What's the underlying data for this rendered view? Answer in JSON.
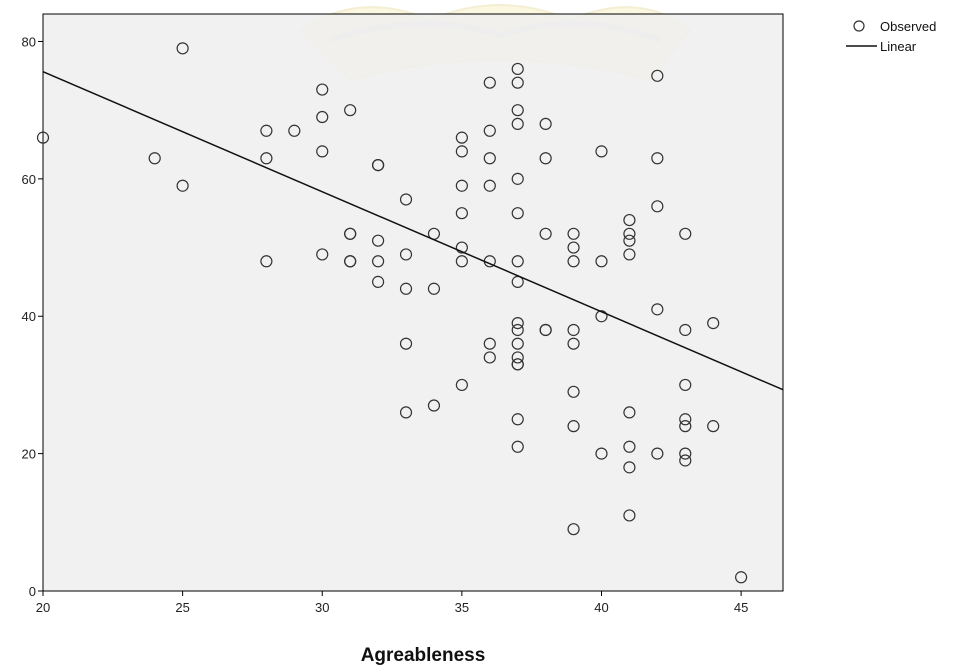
{
  "chart_data": {
    "type": "scatter",
    "title": "",
    "xlabel": "Agreableness",
    "ylabel": "",
    "xlim": [
      20,
      46.5
    ],
    "ylim": [
      0,
      84
    ],
    "x_ticks": [
      20,
      25,
      30,
      35,
      40,
      45
    ],
    "y_ticks": [
      0,
      20,
      40,
      60,
      80
    ],
    "grid": false,
    "legend_position": "top-right",
    "series": [
      {
        "name": "Observed",
        "marker": "open-circle",
        "color": "#333333",
        "points": [
          [
            20,
            66
          ],
          [
            24,
            63
          ],
          [
            25,
            79
          ],
          [
            25,
            59
          ],
          [
            28,
            67
          ],
          [
            28,
            63
          ],
          [
            28,
            48
          ],
          [
            29,
            67
          ],
          [
            30,
            73
          ],
          [
            30,
            69
          ],
          [
            30,
            64
          ],
          [
            30,
            49
          ],
          [
            31,
            70
          ],
          [
            31,
            52
          ],
          [
            31,
            52
          ],
          [
            31,
            48
          ],
          [
            31,
            48
          ],
          [
            32,
            62
          ],
          [
            32,
            62
          ],
          [
            32,
            51
          ],
          [
            32,
            48
          ],
          [
            32,
            45
          ],
          [
            33,
            57
          ],
          [
            33,
            49
          ],
          [
            33,
            44
          ],
          [
            33,
            36
          ],
          [
            33,
            26
          ],
          [
            34,
            52
          ],
          [
            34,
            44
          ],
          [
            34,
            27
          ],
          [
            35,
            66
          ],
          [
            35,
            64
          ],
          [
            35,
            59
          ],
          [
            35,
            55
          ],
          [
            35,
            50
          ],
          [
            35,
            48
          ],
          [
            35,
            30
          ],
          [
            36,
            74
          ],
          [
            36,
            67
          ],
          [
            36,
            63
          ],
          [
            36,
            59
          ],
          [
            36,
            48
          ],
          [
            36,
            36
          ],
          [
            36,
            34
          ],
          [
            37,
            76
          ],
          [
            37,
            74
          ],
          [
            37,
            70
          ],
          [
            37,
            68
          ],
          [
            37,
            60
          ],
          [
            37,
            55
          ],
          [
            37,
            48
          ],
          [
            37,
            45
          ],
          [
            37,
            39
          ],
          [
            37,
            38
          ],
          [
            37,
            36
          ],
          [
            37,
            34
          ],
          [
            37,
            33
          ],
          [
            37,
            33
          ],
          [
            37,
            25
          ],
          [
            37,
            21
          ],
          [
            38,
            68
          ],
          [
            38,
            63
          ],
          [
            38,
            52
          ],
          [
            38,
            38
          ],
          [
            38,
            38
          ],
          [
            39,
            52
          ],
          [
            39,
            50
          ],
          [
            39,
            48
          ],
          [
            39,
            38
          ],
          [
            39,
            36
          ],
          [
            39,
            29
          ],
          [
            39,
            24
          ],
          [
            39,
            9
          ],
          [
            40,
            64
          ],
          [
            40,
            48
          ],
          [
            40,
            40
          ],
          [
            40,
            20
          ],
          [
            41,
            54
          ],
          [
            41,
            52
          ],
          [
            41,
            51
          ],
          [
            41,
            49
          ],
          [
            41,
            26
          ],
          [
            41,
            21
          ],
          [
            41,
            18
          ],
          [
            41,
            11
          ],
          [
            42,
            75
          ],
          [
            42,
            63
          ],
          [
            42,
            56
          ],
          [
            42,
            41
          ],
          [
            42,
            20
          ],
          [
            43,
            52
          ],
          [
            43,
            38
          ],
          [
            43,
            30
          ],
          [
            43,
            25
          ],
          [
            43,
            24
          ],
          [
            43,
            20
          ],
          [
            43,
            19
          ],
          [
            44,
            39
          ],
          [
            44,
            24
          ],
          [
            45,
            2
          ]
        ]
      },
      {
        "name": "Linear",
        "type": "line",
        "color": "#111111",
        "x": [
          20,
          46.5
        ],
        "y": [
          75.6,
          29.3
        ]
      }
    ]
  },
  "colors": {
    "plot_background": "#efefef",
    "axis": "#000000",
    "marker": "#333333",
    "line": "#111111"
  }
}
